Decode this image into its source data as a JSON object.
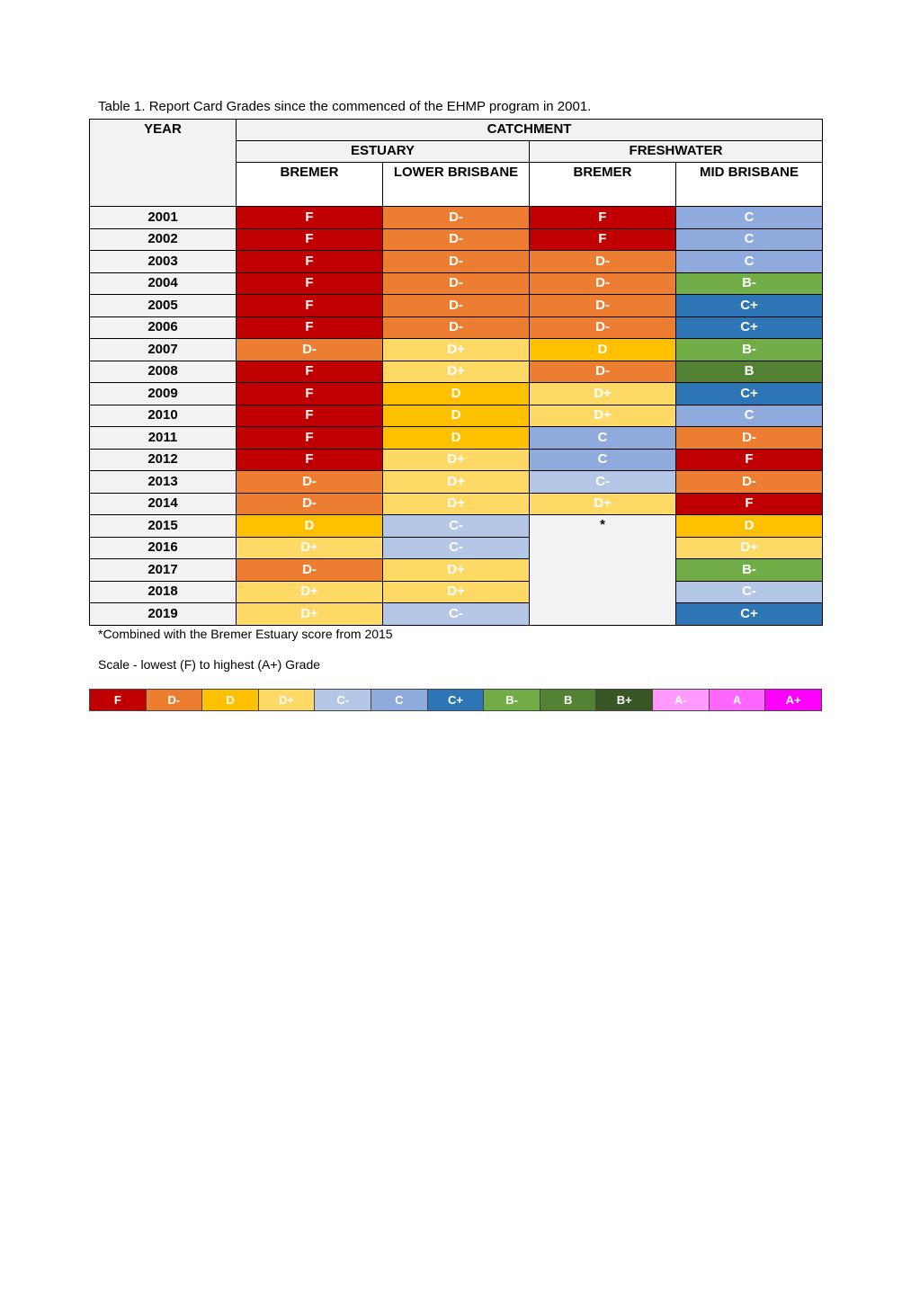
{
  "caption": "Table 1.  Report Card Grades since the commenced of the EHMP program in 2001.",
  "headers": {
    "year": "YEAR",
    "catchment": "CATCHMENT",
    "estuary": "ESTUARY",
    "freshwater": "FRESHWATER",
    "columns": [
      "BREMER",
      "LOWER BRISBANE",
      "BREMER",
      "MID BRISBANE"
    ]
  },
  "grade_colors": {
    "F": "#c00000",
    "D-": "#ed7d31",
    "D": "#ffc000",
    "D+": "#ffd966",
    "C-": "#b4c7e7",
    "C": "#8faadc",
    "C+": "#2e75b6",
    "B-": "#70ad47",
    "B": "#548235",
    "B+": "#375623",
    "A-": "#ff99ff",
    "A": "#ff66ff",
    "A+": "#ff00ff"
  },
  "rows": [
    {
      "year": "2001",
      "grades": [
        "F",
        "D-",
        "F",
        "C"
      ]
    },
    {
      "year": "2002",
      "grades": [
        "F",
        "D-",
        "F",
        "C"
      ]
    },
    {
      "year": "2003",
      "grades": [
        "F",
        "D-",
        "D-",
        "C"
      ]
    },
    {
      "year": "2004",
      "grades": [
        "F",
        "D-",
        "D-",
        "B-"
      ]
    },
    {
      "year": "2005",
      "grades": [
        "F",
        "D-",
        "D-",
        "C+"
      ]
    },
    {
      "year": "2006",
      "grades": [
        "F",
        "D-",
        "D-",
        "C+"
      ]
    },
    {
      "year": "2007",
      "grades": [
        "D-",
        "D+",
        "D",
        "B-"
      ]
    },
    {
      "year": "2008",
      "grades": [
        "F",
        "D+",
        "D-",
        "B"
      ]
    },
    {
      "year": "2009",
      "grades": [
        "F",
        "D",
        "D+",
        "C+"
      ]
    },
    {
      "year": "2010",
      "grades": [
        "F",
        "D",
        "D+",
        "C"
      ]
    },
    {
      "year": "2011",
      "grades": [
        "F",
        "D",
        "C",
        "D-"
      ]
    },
    {
      "year": "2012",
      "grades": [
        "F",
        "D+",
        "C",
        "F"
      ]
    },
    {
      "year": "2013",
      "grades": [
        "D-",
        "D+",
        "C-",
        "D-"
      ]
    },
    {
      "year": "2014",
      "grades": [
        "D-",
        "D+",
        "D+",
        "F"
      ]
    },
    {
      "year": "2015",
      "grades": [
        "D",
        "C-",
        null,
        "D"
      ]
    },
    {
      "year": "2016",
      "grades": [
        "D+",
        "C-",
        null,
        "D+"
      ]
    },
    {
      "year": "2017",
      "grades": [
        "D-",
        "D+",
        null,
        "B-"
      ]
    },
    {
      "year": "2018",
      "grades": [
        "D+",
        "D+",
        null,
        "C-"
      ]
    },
    {
      "year": "2019",
      "grades": [
        "D+",
        "C-",
        null,
        "C+"
      ]
    }
  ],
  "merged_note_marker": "*",
  "footnote": "*Combined with the Bremer Estuary score from 2015",
  "scale_title": "Scale - lowest (F) to highest (A+) Grade",
  "scale": [
    "F",
    "D-",
    "D",
    "D+",
    "C-",
    "C",
    "C+",
    "B-",
    "B",
    "B+",
    "A-",
    "A",
    "A+"
  ]
}
